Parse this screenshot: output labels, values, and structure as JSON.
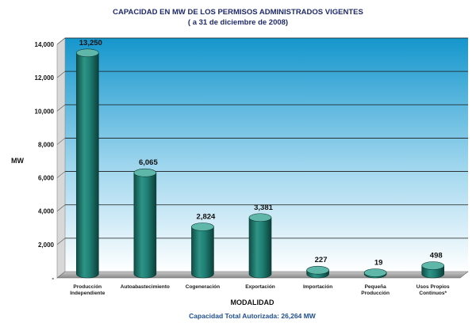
{
  "chart_data": {
    "type": "bar",
    "title": "CAPACIDAD EN MW DE LOS PERMISOS ADMINISTRADOS VIGENTES",
    "subtitle": "( a 31 de diciembre de 2008)",
    "ylabel": "MW",
    "xlabel": "MODALIDAD",
    "ylim": [
      0,
      14000
    ],
    "yticks": [
      {
        "value": 0,
        "label": "-"
      },
      {
        "value": 2000,
        "label": "2,000"
      },
      {
        "value": 4000,
        "label": "4,000"
      },
      {
        "value": 6000,
        "label": "6,000"
      },
      {
        "value": 8000,
        "label": "8,000"
      },
      {
        "value": 10000,
        "label": "10,000"
      },
      {
        "value": 12000,
        "label": "12,000"
      },
      {
        "value": 14000,
        "label": "14,000"
      }
    ],
    "grid": true,
    "categories": [
      [
        "Producción",
        "Independiente"
      ],
      [
        "Autoabastecimiento"
      ],
      [
        "Cogeneración"
      ],
      [
        "Exportación"
      ],
      [
        "Importación"
      ],
      [
        "Pequeña",
        "Producción"
      ],
      [
        "Usos Propios",
        "Continuos*"
      ]
    ],
    "values": [
      13250,
      6065,
      2824,
      3381,
      227,
      19,
      498
    ],
    "value_labels": [
      "13,250",
      "6,065",
      "2,824",
      "3,381",
      "227",
      "19",
      "498"
    ],
    "footer": "Capacidad Total Autorizada: 26,264 MW",
    "colors": {
      "bar": "#1f7f74",
      "bar_dark": "#0f4d47",
      "bar_light": "#5fb7aa",
      "background_top": "#1596cc",
      "background_bottom": "#ffffff",
      "floor": "#9a9a9a"
    }
  }
}
